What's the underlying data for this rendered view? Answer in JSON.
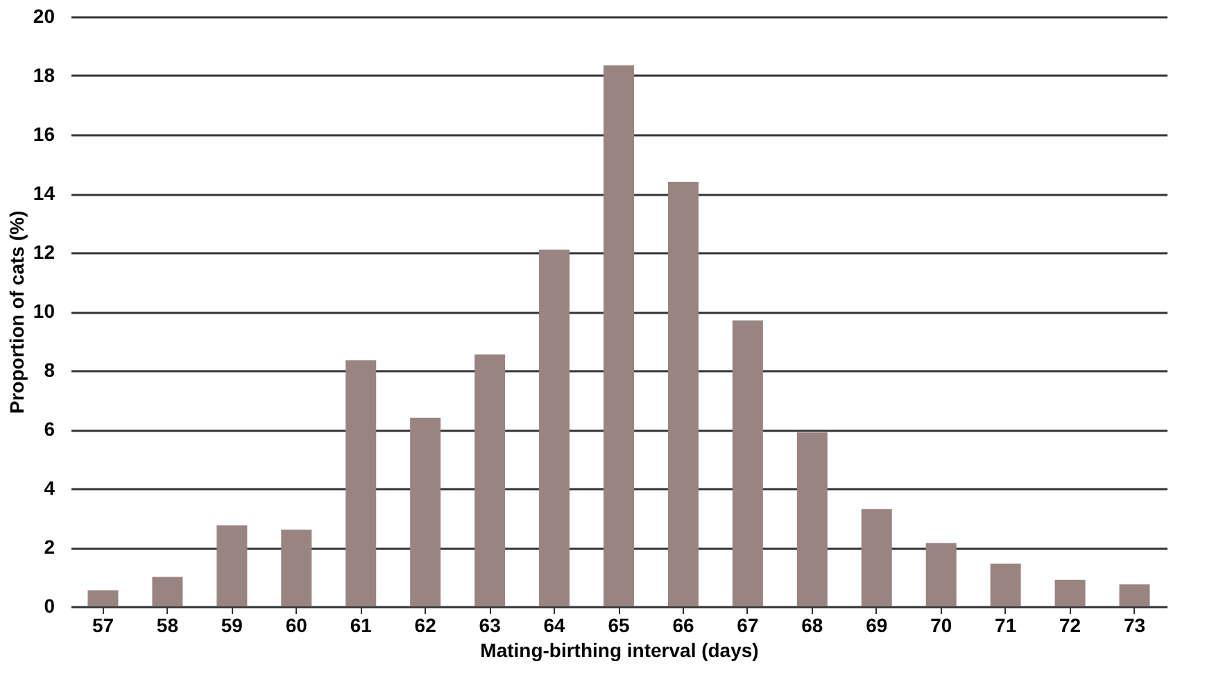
{
  "chart_data": {
    "type": "bar",
    "xlabel": "Mating-birthing interval (days)",
    "ylabel": "Proportion of cats (%)",
    "categories": [
      "57",
      "58",
      "59",
      "60",
      "61",
      "62",
      "63",
      "64",
      "65",
      "66",
      "67",
      "68",
      "69",
      "70",
      "71",
      "72",
      "73"
    ],
    "values": [
      0.55,
      1.0,
      2.75,
      2.6,
      8.35,
      6.4,
      8.55,
      12.1,
      18.35,
      14.4,
      9.7,
      5.9,
      3.3,
      2.15,
      1.45,
      0.9,
      0.75
    ],
    "color": "#9a8482",
    "ylim": [
      0,
      20
    ],
    "yticks": [
      0,
      2,
      4,
      6,
      8,
      10,
      12,
      14,
      16,
      18,
      20
    ],
    "grid": "y"
  }
}
